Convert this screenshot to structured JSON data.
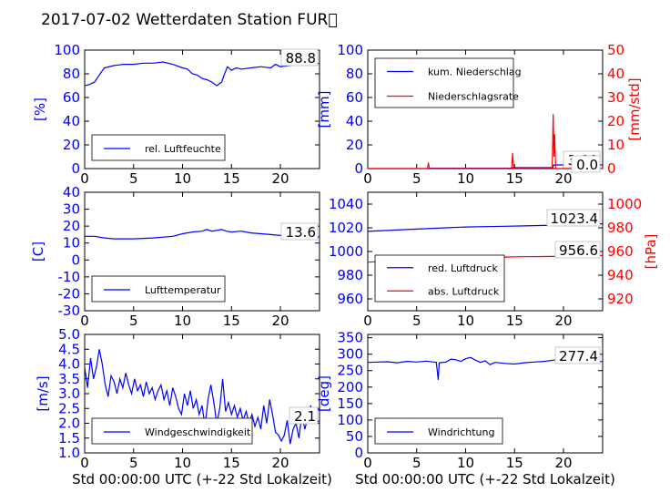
{
  "figure_title": "2017-07-02 Wetterdaten Station FUR\u0000",
  "colors": {
    "primary": "#0000ff",
    "secondary": "#ff0000",
    "axis": "#000000"
  },
  "x_axis": {
    "label": "Std 00:00:00 UTC (+-22 Std Lokalzeit)",
    "range": [
      0,
      24
    ],
    "ticks": [
      0,
      5,
      10,
      15,
      20
    ]
  },
  "chart_data": [
    {
      "type": "line",
      "panel": "top-left",
      "ylabel": "[%]",
      "ylim": [
        0,
        100
      ],
      "yticks": [
        0,
        20,
        40,
        60,
        80,
        100
      ],
      "legend_placement": "lower-left",
      "series": [
        {
          "name": "rel. Luftfeuchte",
          "axis": "left",
          "color": "#0000ff",
          "points": [
            [
              0,
              70
            ],
            [
              0.5,
              71
            ],
            [
              1,
              73
            ],
            [
              1.5,
              79
            ],
            [
              2,
              85
            ],
            [
              3,
              87
            ],
            [
              4,
              88
            ],
            [
              5,
              88
            ],
            [
              6,
              89
            ],
            [
              7,
              89
            ],
            [
              8,
              90
            ],
            [
              9,
              88
            ],
            [
              10,
              85
            ],
            [
              10.5,
              84
            ],
            [
              11,
              80
            ],
            [
              11.5,
              79
            ],
            [
              12,
              76
            ],
            [
              12.5,
              75
            ],
            [
              13,
              73
            ],
            [
              13.5,
              70
            ],
            [
              14,
              73
            ],
            [
              14.3,
              80
            ],
            [
              14.6,
              86
            ],
            [
              15,
              83
            ],
            [
              15.5,
              85
            ],
            [
              16,
              84
            ],
            [
              17,
              85
            ],
            [
              18,
              86
            ],
            [
              19,
              85
            ],
            [
              19.5,
              88
            ],
            [
              20,
              86
            ],
            [
              21,
              87
            ],
            [
              22,
              88
            ],
            [
              23,
              88.8
            ],
            [
              24,
              88.8
            ]
          ]
        }
      ],
      "annotations": [
        "88.8"
      ]
    },
    {
      "type": "line",
      "panel": "top-right",
      "ylabel": "[mm]",
      "ylabel_right": "[mm/std]",
      "ylim": [
        0,
        100
      ],
      "yticks": [
        0,
        20,
        40,
        60,
        80,
        100
      ],
      "ylim_right": [
        0,
        50
      ],
      "yticks_right": [
        0,
        10,
        20,
        30,
        40,
        50
      ],
      "legend_placement": "upper-left",
      "series": [
        {
          "name": "kum. Niederschlag",
          "axis": "left",
          "color": "#0000ff",
          "points": [
            [
              0,
              0
            ],
            [
              6.2,
              0
            ],
            [
              6.3,
              0.3
            ],
            [
              14.7,
              0.3
            ],
            [
              14.8,
              0.8
            ],
            [
              18.9,
              0.8
            ],
            [
              19,
              3.09
            ],
            [
              24,
              3.09
            ]
          ]
        },
        {
          "name": "Niederschlagsrate",
          "axis": "right",
          "color": "#ff0000",
          "points": [
            [
              0,
              0
            ],
            [
              6.1,
              0
            ],
            [
              6.2,
              2.5
            ],
            [
              6.3,
              0
            ],
            [
              14.7,
              0
            ],
            [
              14.8,
              6.5
            ],
            [
              14.9,
              0
            ],
            [
              18.85,
              0
            ],
            [
              18.95,
              23
            ],
            [
              19.02,
              5
            ],
            [
              19.1,
              14.5
            ],
            [
              19.2,
              0
            ],
            [
              24,
              0
            ]
          ]
        }
      ],
      "annotations": [
        "3.09",
        "0.0"
      ]
    },
    {
      "type": "line",
      "panel": "middle-left",
      "ylabel": "[C]",
      "ylim": [
        -30,
        40
      ],
      "yticks": [
        -30,
        -20,
        -10,
        0,
        10,
        20,
        30,
        40
      ],
      "legend_placement": "lower-left",
      "series": [
        {
          "name": "Lufttemperatur",
          "axis": "left",
          "color": "#0000ff",
          "points": [
            [
              0,
              14
            ],
            [
              1,
              14
            ],
            [
              2,
              13
            ],
            [
              3,
              12.5
            ],
            [
              5,
              12.5
            ],
            [
              7,
              13
            ],
            [
              9,
              14
            ],
            [
              10,
              15.5
            ],
            [
              11,
              16.5
            ],
            [
              12,
              17
            ],
            [
              12.5,
              18
            ],
            [
              13,
              17
            ],
            [
              14,
              18
            ],
            [
              14.5,
              17
            ],
            [
              15,
              16.5
            ],
            [
              16,
              17
            ],
            [
              17,
              16
            ],
            [
              18,
              15.5
            ],
            [
              19,
              15
            ],
            [
              20,
              14.5
            ],
            [
              21,
              14
            ],
            [
              22,
              13.7
            ],
            [
              24,
              13.6
            ]
          ]
        }
      ],
      "annotations": [
        "13.6"
      ]
    },
    {
      "type": "line",
      "panel": "middle-right",
      "ylim": [
        950,
        1050
      ],
      "yticks": [
        960,
        980,
        1000,
        1020,
        1040
      ],
      "ylabel_right": "[hPa]",
      "ylim_right": [
        910,
        1010
      ],
      "yticks_right": [
        920,
        940,
        960,
        980,
        1000
      ],
      "legend_placement": "lower-left",
      "series": [
        {
          "name": "red. Luftdruck",
          "axis": "left",
          "color": "#0000ff",
          "points": [
            [
              0,
              1017
            ],
            [
              4,
              1018.5
            ],
            [
              8,
              1020
            ],
            [
              10,
              1020.7
            ],
            [
              12,
              1021
            ],
            [
              14,
              1021.3
            ],
            [
              16,
              1021.6
            ],
            [
              18,
              1022
            ],
            [
              20,
              1022.5
            ],
            [
              22,
              1023.2
            ],
            [
              24,
              1023.4
            ]
          ]
        },
        {
          "name": "abs. Luftdruck",
          "axis": "right",
          "color": "#ff0000",
          "points": [
            [
              0,
              951
            ],
            [
              4,
              952.5
            ],
            [
              8,
              954
            ],
            [
              10,
              954.8
            ],
            [
              12,
              955
            ],
            [
              14,
              955.3
            ],
            [
              16,
              955.6
            ],
            [
              18,
              955.8
            ],
            [
              20,
              956
            ],
            [
              22,
              956.3
            ],
            [
              24,
              956.6
            ]
          ]
        }
      ],
      "annotations": [
        "1023.4",
        "956.6"
      ]
    },
    {
      "type": "line",
      "panel": "bottom-left",
      "ylabel": "[m/s]",
      "ylim": [
        1,
        5
      ],
      "yticks": [
        1.0,
        1.5,
        2.0,
        2.5,
        3.0,
        3.5,
        4.0,
        4.5,
        5.0
      ],
      "legend_placement": "lower-left",
      "series": [
        {
          "name": "Windgeschwindigkeit",
          "axis": "left",
          "color": "#0000ff",
          "points": [
            [
              0,
              3.9
            ],
            [
              0.3,
              3.2
            ],
            [
              0.6,
              4.2
            ],
            [
              0.9,
              3.5
            ],
            [
              1.2,
              3.9
            ],
            [
              1.5,
              4.5
            ],
            [
              1.8,
              4.0
            ],
            [
              2.1,
              3.3
            ],
            [
              2.4,
              2.9
            ],
            [
              2.7,
              3.6
            ],
            [
              3.0,
              3.4
            ],
            [
              3.3,
              3.0
            ],
            [
              3.6,
              3.5
            ],
            [
              3.9,
              3.2
            ],
            [
              4.2,
              3.7
            ],
            [
              4.5,
              3.3
            ],
            [
              4.8,
              3.0
            ],
            [
              5.1,
              3.5
            ],
            [
              5.4,
              3.1
            ],
            [
              5.7,
              3.3
            ],
            [
              6.0,
              2.9
            ],
            [
              6.3,
              3.4
            ],
            [
              6.6,
              3.0
            ],
            [
              6.9,
              3.2
            ],
            [
              7.2,
              2.8
            ],
            [
              7.5,
              3.1
            ],
            [
              7.8,
              3.3
            ],
            [
              8.1,
              2.8
            ],
            [
              8.4,
              3.1
            ],
            [
              8.7,
              2.6
            ],
            [
              9.0,
              3.2
            ],
            [
              9.3,
              2.9
            ],
            [
              9.6,
              2.5
            ],
            [
              9.9,
              2.3
            ],
            [
              10.2,
              3.0
            ],
            [
              10.5,
              2.6
            ],
            [
              10.8,
              3.1
            ],
            [
              11.1,
              2.5
            ],
            [
              11.4,
              2.8
            ],
            [
              11.7,
              2.3
            ],
            [
              12.0,
              2.6
            ],
            [
              12.3,
              1.9
            ],
            [
              12.6,
              2.8
            ],
            [
              12.9,
              3.3
            ],
            [
              13.2,
              2.7
            ],
            [
              13.5,
              2.0
            ],
            [
              13.8,
              2.5
            ],
            [
              14.1,
              3.5
            ],
            [
              14.4,
              2.4
            ],
            [
              14.7,
              2.7
            ],
            [
              15.0,
              2.3
            ],
            [
              15.3,
              2.6
            ],
            [
              15.6,
              2.2
            ],
            [
              15.9,
              2.5
            ],
            [
              16.2,
              2.1
            ],
            [
              16.5,
              2.4
            ],
            [
              16.8,
              2.0
            ],
            [
              17.1,
              2.3
            ],
            [
              17.4,
              1.9
            ],
            [
              17.7,
              2.2
            ],
            [
              18.0,
              1.8
            ],
            [
              18.3,
              2.6
            ],
            [
              18.6,
              2.0
            ],
            [
              18.9,
              2.8
            ],
            [
              19.2,
              2.3
            ],
            [
              19.5,
              1.7
            ],
            [
              19.8,
              1.6
            ],
            [
              20.1,
              1.4
            ],
            [
              20.4,
              1.6
            ],
            [
              20.7,
              2.1
            ],
            [
              21.0,
              1.3
            ],
            [
              21.3,
              1.8
            ],
            [
              21.6,
              2.0
            ],
            [
              21.9,
              1.5
            ],
            [
              22.2,
              2.3
            ],
            [
              22.5,
              1.8
            ],
            [
              22.8,
              2.2
            ],
            [
              23.1,
              2.6
            ],
            [
              23.4,
              2.2
            ],
            [
              23.7,
              2.0
            ],
            [
              24,
              2.1
            ]
          ]
        }
      ],
      "annotations": [
        "2.1"
      ]
    },
    {
      "type": "line",
      "panel": "bottom-right",
      "ylabel": "[deg]",
      "ylim": [
        0,
        360
      ],
      "yticks": [
        0,
        50,
        100,
        150,
        200,
        250,
        300,
        350
      ],
      "legend_placement": "lower-left",
      "series": [
        {
          "name": "Windrichtung",
          "axis": "left",
          "color": "#0000ff",
          "points": [
            [
              0,
              275
            ],
            [
              1,
              276
            ],
            [
              2,
              277
            ],
            [
              3,
              274
            ],
            [
              4,
              278
            ],
            [
              5,
              276
            ],
            [
              6,
              279
            ],
            [
              7,
              275
            ],
            [
              7.2,
              222
            ],
            [
              7.3,
              274
            ],
            [
              8,
              276
            ],
            [
              8.5,
              285
            ],
            [
              9,
              283
            ],
            [
              9.5,
              278
            ],
            [
              10,
              286
            ],
            [
              10.5,
              290
            ],
            [
              11,
              282
            ],
            [
              11.5,
              275
            ],
            [
              12,
              280
            ],
            [
              12.5,
              268
            ],
            [
              13,
              275
            ],
            [
              14,
              272
            ],
            [
              15,
              270
            ],
            [
              16,
              274
            ],
            [
              17,
              276
            ],
            [
              18,
              278
            ],
            [
              19,
              282
            ],
            [
              20,
              286
            ],
            [
              21,
              283
            ],
            [
              22,
              281
            ],
            [
              23,
              279
            ],
            [
              24,
              277.4
            ]
          ]
        }
      ],
      "annotations": [
        "277.4"
      ]
    }
  ]
}
